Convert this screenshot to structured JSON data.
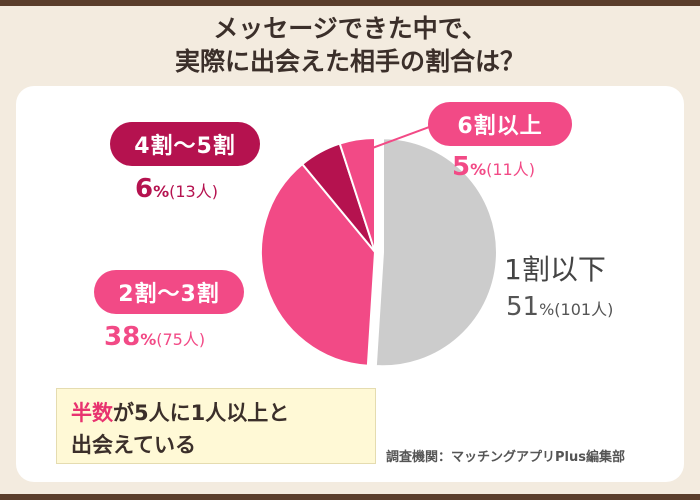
{
  "title_lines": [
    "メッセージできた中で、",
    "実際に出会えた相手の割合は？"
  ],
  "colors": {
    "background": "#f3ebdf",
    "header_bar": "#5a3d2b",
    "slice_1": "#cccccc",
    "slice_2": "#f24a86",
    "slice_3": "#b5124f",
    "slice_4": "#f24a86",
    "note_highlight": "#e8336f"
  },
  "labels": {
    "s1": {
      "name": "1割以下",
      "percent": "51",
      "unit": "%",
      "count": "(101人)"
    },
    "s2": {
      "name": "2割〜3割",
      "percent": "38",
      "unit": "%",
      "count": "(75人)"
    },
    "s3": {
      "name": "4割〜5割",
      "percent": "6",
      "unit": "%",
      "count": "(13人)"
    },
    "s4": {
      "name": "6割以上",
      "percent": "5",
      "unit": "%",
      "count": "(11人)"
    }
  },
  "note": {
    "line1_highlight": "半数",
    "line1_rest": "が5人に1人以上と",
    "line2": "出会えている"
  },
  "source": "調査機関：マッチングアプリPlus編集部",
  "chart_data": {
    "type": "pie",
    "title": "メッセージできた中で、実際に出会えた相手の割合は？",
    "categories": [
      "1割以下",
      "2割〜3割",
      "4割〜5割",
      "6割以上"
    ],
    "values": [
      51,
      38,
      6,
      5
    ],
    "counts": [
      101,
      75,
      13,
      11
    ],
    "exploded": "1割以下"
  }
}
